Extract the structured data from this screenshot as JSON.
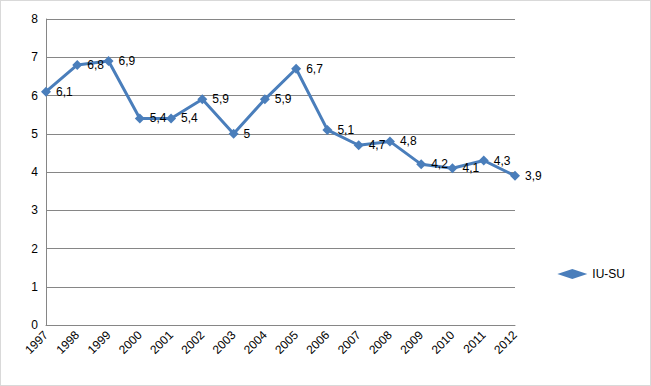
{
  "chart_data": {
    "type": "line",
    "categories": [
      "1997",
      "1998",
      "1999",
      "2000",
      "2001",
      "2002",
      "2003",
      "2004",
      "2005",
      "2006",
      "2007",
      "2008",
      "2009",
      "2010",
      "2011",
      "2012"
    ],
    "series": [
      {
        "name": "IU-SU",
        "color": "#4a7ebb",
        "marker": "diamond",
        "values": [
          6.1,
          6.8,
          6.9,
          5.4,
          5.4,
          5.9,
          5,
          5.9,
          6.7,
          5.1,
          4.7,
          4.8,
          4.2,
          4.1,
          4.3,
          3.9
        ],
        "value_labels": [
          "6,1",
          "6,8",
          "6,9",
          "5,4",
          "5,4",
          "5,9",
          "5",
          "5,9",
          "6,7",
          "5,1",
          "4,7",
          "4,8",
          "4,2",
          "4,1",
          "4,3",
          "3,9"
        ]
      }
    ],
    "ylim": [
      0,
      8
    ],
    "yticks": [
      0,
      1,
      2,
      3,
      4,
      5,
      6,
      7,
      8
    ],
    "grid": true,
    "legend": "right",
    "data_labels": true
  }
}
